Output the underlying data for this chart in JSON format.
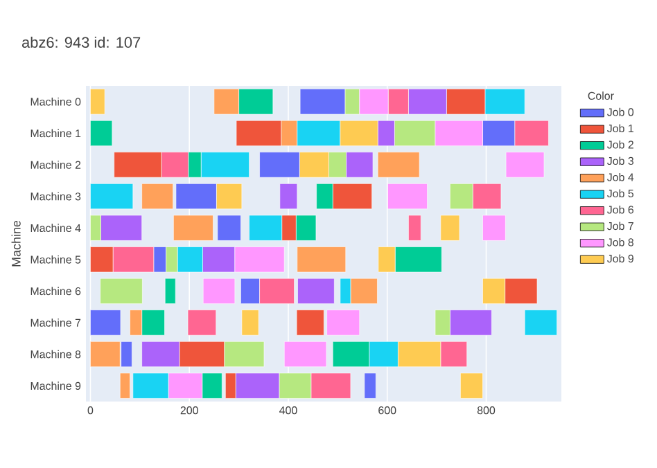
{
  "chart_data": {
    "type": "bar",
    "orientation": "horizontal",
    "title": "abz6: 943 id: 107",
    "ylabel": "Machine",
    "legend_title": "Color",
    "legend": "right",
    "grid": "x",
    "categories": [
      "Machine 0",
      "Machine 1",
      "Machine 2",
      "Machine 3",
      "Machine 4",
      "Machine 5",
      "Machine 6",
      "Machine 7",
      "Machine 8",
      "Machine 9"
    ],
    "xlim": [
      -9,
      952
    ],
    "xticks": [
      0,
      200,
      400,
      600,
      800
    ],
    "series": [
      {
        "name": "Job 0",
        "color": "#636efa",
        "base": [
          424,
          793,
          342,
          173,
          257,
          128,
          304,
          0,
          62,
          554
        ],
        "values": [
          91,
          65,
          81,
          82,
          47,
          25,
          38,
          61,
          22,
          23
        ]
      },
      {
        "name": "Job 1",
        "color": "#ef553b",
        "base": [
          720,
          295,
          48,
          490,
          387,
          0,
          838,
          417,
          180,
          273
        ],
        "values": [
          78,
          91,
          96,
          79,
          29,
          46,
          65,
          55,
          91,
          21
        ]
      },
      {
        "name": "Job 2",
        "color": "#00cc96",
        "base": [
          300,
          0,
          198,
          457,
          416,
          616,
          151,
          104,
          490,
          226
        ],
        "values": [
          69,
          44,
          26,
          33,
          40,
          94,
          21,
          46,
          74,
          40
        ]
      },
      {
        "name": "Job 3",
        "color": "#ab63fa",
        "base": [
          643,
          581,
          517,
          383,
          21,
          227,
          419,
          727,
          104,
          294
        ],
        "values": [
          77,
          34,
          54,
          35,
          83,
          65,
          74,
          84,
          76,
          88
        ]
      },
      {
        "name": "Job 4",
        "color": "#ffa15a",
        "base": [
          250,
          386,
          581,
          104,
          168,
          418,
          526,
          80,
          0,
          60
        ],
        "values": [
          50,
          32,
          84,
          63,
          80,
          98,
          54,
          24,
          60,
          20
        ]
      },
      {
        "name": "Job 5",
        "color": "#19d3f3",
        "base": [
          798,
          418,
          224,
          0,
          321,
          176,
          505,
          878,
          564,
          86
        ],
        "values": [
          80,
          87,
          97,
          86,
          66,
          51,
          21,
          65,
          58,
          72
        ]
      },
      {
        "name": "Job 6",
        "color": "#ff6692",
        "base": [
          602,
          858,
          144,
          773,
          643,
          46,
          342,
          197,
          708,
          446
        ],
        "values": [
          41,
          68,
          54,
          57,
          25,
          82,
          70,
          57,
          53,
          80
        ]
      },
      {
        "name": "Job 7",
        "color": "#b6e880",
        "base": [
          515,
          615,
          482,
          727,
          0,
          153,
          20,
          697,
          271,
          382
        ],
        "values": [
          29,
          82,
          35,
          46,
          21,
          23,
          85,
          30,
          80,
          64
        ]
      },
      {
        "name": "Job 8",
        "color": "#ff97ff",
        "base": [
          544,
          697,
          840,
          601,
          793,
          292,
          228,
          478,
          392,
          158
        ],
        "values": [
          58,
          96,
          77,
          80,
          46,
          100,
          64,
          66,
          85,
          68
        ]
      },
      {
        "name": "Job 9",
        "color": "#fecb52",
        "base": [
          0,
          505,
          423,
          255,
          708,
          582,
          793,
          306,
          622,
          748
        ],
        "values": [
          29,
          76,
          59,
          51,
          38,
          34,
          45,
          34,
          86,
          45
        ]
      }
    ]
  }
}
